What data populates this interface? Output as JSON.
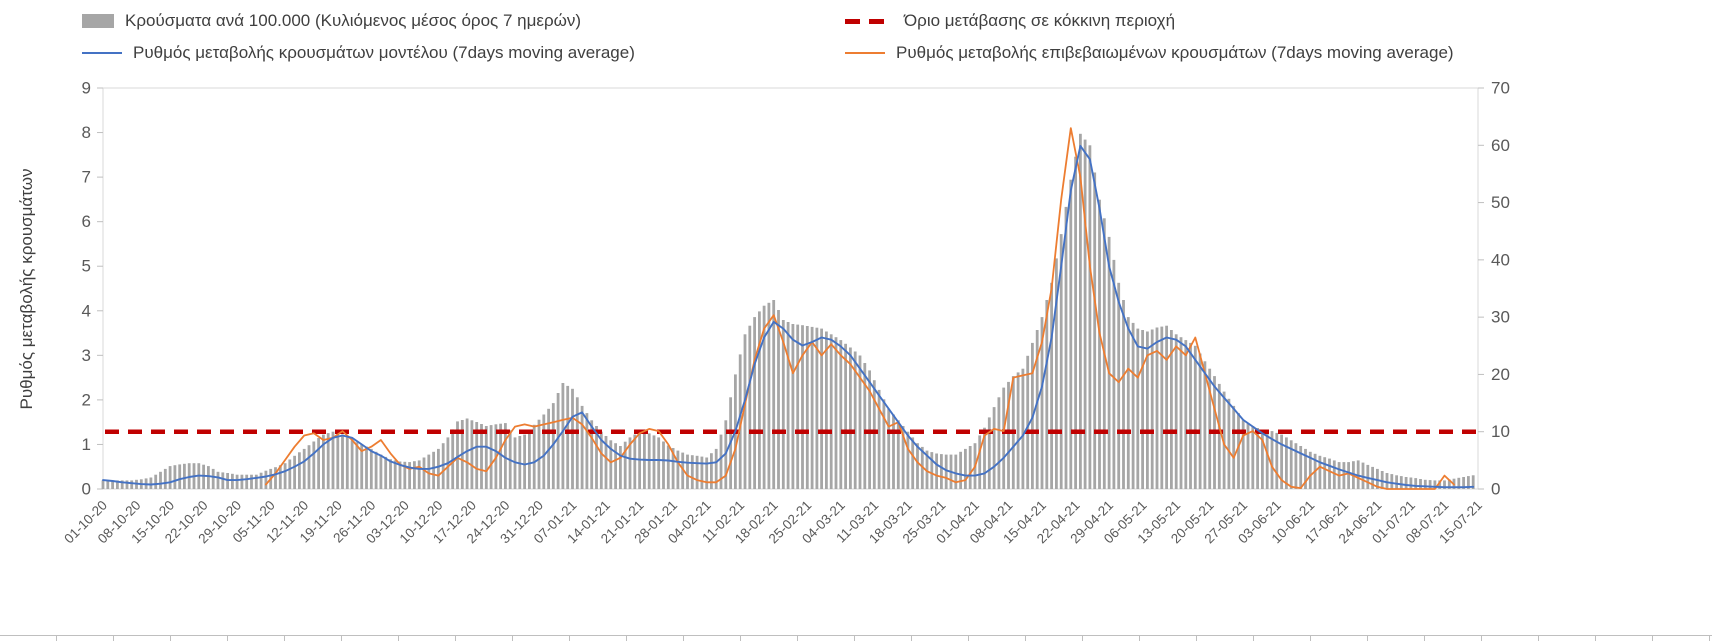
{
  "legend": {
    "cases_per_100k": "Κρούσματα ανά 100.000 (Κυλιόμενος μέσος όρος 7 ημερών)",
    "red_zone_threshold": "Όριο μετάβασης σε κόκκινη περιοχή",
    "model_rate": "Ρυθμός μεταβολής κρουσμάτων μοντέλου (7days moving average)",
    "confirmed_rate": "Ρυθμός μεταβολής επιβεβαιωμένων κρουσμάτων (7days moving average)"
  },
  "left_axis_title": "Ρυθμός μεταβολής κρουσμάτων",
  "colors": {
    "bars": "#a6a6a6",
    "model_line": "#4472c4",
    "confirmed_line": "#ed7d31",
    "threshold_line": "#c00000",
    "axis_text": "#595959",
    "legend_text": "#3f3f3f",
    "frame": "#d9d9d9",
    "tick": "#bfbfbf"
  },
  "chart_data": {
    "type": "bar",
    "subtype": "bar+line combo, dual y-axis",
    "title": "",
    "x_unit": "days since 01-10-20, daily bars, weekly tick labels",
    "sample_step_days": 2,
    "total_days": 287,
    "x_tick_interval_days": 7,
    "x_tick_labels": [
      "01-10-20",
      "08-10-20",
      "15-10-20",
      "22-10-20",
      "29-10-20",
      "05-11-20",
      "12-11-20",
      "19-11-20",
      "26-11-20",
      "03-12-20",
      "10-12-20",
      "17-12-20",
      "24-12-20",
      "31-12-20",
      "07-01-21",
      "14-01-21",
      "21-01-21",
      "28-01-21",
      "04-02-21",
      "11-02-21",
      "18-02-21",
      "25-02-21",
      "04-03-21",
      "11-03-21",
      "18-03-21",
      "25-03-21",
      "01-04-21",
      "08-04-21",
      "15-04-21",
      "22-04-21",
      "29-04-21",
      "06-05-21",
      "13-05-21",
      "20-05-21",
      "27-05-21",
      "03-06-21",
      "10-06-21",
      "17-06-21",
      "24-06-21",
      "01-07-21",
      "08-07-21",
      "15-07-21"
    ],
    "left_axis": {
      "label": "Ρυθμός μεταβολής κρουσμάτων",
      "min": 0,
      "max": 9,
      "ticks": [
        0,
        1,
        2,
        3,
        4,
        5,
        6,
        7,
        8,
        9
      ]
    },
    "right_axis": {
      "label": "",
      "min": 0,
      "max": 70,
      "ticks": [
        0,
        10,
        20,
        30,
        40,
        50,
        60,
        70
      ]
    },
    "threshold": {
      "value_right_axis": 10,
      "label": "Όριο μετάβασης σε κόκκινη περιοχή"
    },
    "legend_position": "top",
    "grid": "off",
    "series": {
      "bars_cases_per_100k_right_axis": [
        1.5,
        1.5,
        1.5,
        1.5,
        1.7,
        2,
        3,
        4,
        4.3,
        4.5,
        4.5,
        4,
        3,
        2.8,
        2.5,
        2.5,
        2.5,
        3.2,
        3.8,
        4.5,
        5.8,
        7,
        8.3,
        9.5,
        10,
        9.5,
        8.5,
        7.8,
        7,
        6,
        5.2,
        4.8,
        4.7,
        5,
        6,
        7,
        9,
        11.8,
        12.3,
        11.7,
        11,
        11.3,
        11.5,
        9,
        9.5,
        11.2,
        13,
        15,
        18.5,
        17.5,
        14.5,
        12,
        10,
        8.5,
        7.5,
        9,
        10,
        9.7,
        9,
        7.6,
        6.7,
        6,
        5.8,
        5.5,
        7,
        12,
        20,
        27,
        30,
        32,
        33,
        29.5,
        28.8,
        28.6,
        28.3,
        28,
        27,
        26,
        24.7,
        23.3,
        20.7,
        17.3,
        14,
        12,
        10,
        8,
        6.7,
        6.2,
        6,
        6,
        7,
        8,
        10.7,
        14.3,
        17.7,
        19.7,
        21,
        25.5,
        30,
        36,
        44.5,
        54,
        62,
        60,
        50.5,
        44,
        36,
        30,
        28,
        27.5,
        28.2,
        28.5,
        27,
        26,
        25,
        22.3,
        19.7,
        17,
        14.5,
        12,
        11,
        10.3,
        10.1,
        9.5,
        8.5,
        7.5,
        6.5,
        5.8,
        5.3,
        4.7,
        4.7,
        5,
        4.2,
        3.5,
        2.8,
        2.4,
        2.1,
        1.9,
        1.6,
        1.5,
        1.5,
        1.8,
        2.1,
        2.4
      ],
      "model_rate_left_axis": [
        0.2,
        0.18,
        0.15,
        0.13,
        0.11,
        0.1,
        0.12,
        0.15,
        0.22,
        0.27,
        0.3,
        0.29,
        0.26,
        0.2,
        0.2,
        0.22,
        0.25,
        0.28,
        0.33,
        0.4,
        0.5,
        0.62,
        0.8,
        1.0,
        1.15,
        1.2,
        1.15,
        1.0,
        0.85,
        0.75,
        0.62,
        0.54,
        0.48,
        0.45,
        0.45,
        0.5,
        0.58,
        0.72,
        0.85,
        0.95,
        0.95,
        0.85,
        0.7,
        0.6,
        0.55,
        0.6,
        0.75,
        1.0,
        1.3,
        1.62,
        1.72,
        1.4,
        1.1,
        0.9,
        0.75,
        0.68,
        0.66,
        0.65,
        0.65,
        0.64,
        0.61,
        0.59,
        0.58,
        0.57,
        0.6,
        0.8,
        1.3,
        2.0,
        2.8,
        3.4,
        3.75,
        3.6,
        3.35,
        3.22,
        3.3,
        3.4,
        3.35,
        3.2,
        3.0,
        2.7,
        2.4,
        2.1,
        1.8,
        1.5,
        1.2,
        0.95,
        0.75,
        0.55,
        0.42,
        0.35,
        0.3,
        0.3,
        0.35,
        0.5,
        0.7,
        0.95,
        1.2,
        1.6,
        2.3,
        3.4,
        5.0,
        6.7,
        7.7,
        7.4,
        6.3,
        5.0,
        4.2,
        3.6,
        3.2,
        3.15,
        3.3,
        3.4,
        3.35,
        3.2,
        2.9,
        2.6,
        2.3,
        2.05,
        1.8,
        1.55,
        1.4,
        1.25,
        1.12,
        1.0,
        0.9,
        0.8,
        0.7,
        0.6,
        0.52,
        0.44,
        0.37,
        0.3,
        0.25,
        0.2,
        0.15,
        0.12,
        0.09,
        0.07,
        0.06,
        0.05,
        0.04,
        0.04,
        0.04,
        0.05
      ],
      "confirmed_rate_left_axis": [
        null,
        null,
        null,
        null,
        null,
        null,
        null,
        null,
        null,
        null,
        null,
        null,
        null,
        null,
        null,
        null,
        null,
        0.1,
        0.35,
        0.65,
        0.95,
        1.2,
        1.25,
        1.1,
        1.15,
        1.3,
        1.1,
        0.85,
        0.95,
        1.1,
        0.8,
        0.55,
        0.45,
        0.5,
        0.35,
        0.3,
        0.5,
        0.7,
        0.6,
        0.45,
        0.4,
        0.7,
        1.1,
        1.4,
        1.45,
        1.4,
        1.45,
        1.5,
        1.55,
        1.6,
        1.45,
        1.15,
        0.8,
        0.6,
        0.7,
        1.0,
        1.25,
        1.35,
        1.3,
        1.0,
        0.6,
        0.3,
        0.2,
        0.15,
        0.15,
        0.3,
        0.9,
        1.9,
        2.9,
        3.6,
        3.9,
        3.3,
        2.6,
        3.0,
        3.3,
        3.0,
        3.25,
        3.0,
        2.8,
        2.5,
        2.2,
        1.8,
        1.4,
        1.5,
        0.9,
        0.6,
        0.4,
        0.3,
        0.25,
        0.15,
        0.2,
        0.5,
        1.2,
        1.35,
        1.3,
        2.5,
        2.55,
        2.6,
        3.3,
        4.5,
        6.5,
        8.1,
        7.0,
        5.0,
        3.5,
        2.6,
        2.4,
        2.7,
        2.5,
        3.0,
        3.1,
        2.9,
        3.2,
        3.0,
        3.4,
        2.6,
        1.8,
        1.0,
        0.7,
        1.2,
        1.3,
        1.1,
        0.5,
        0.2,
        0.05,
        0.02,
        0.3,
        0.5,
        0.4,
        0.3,
        0.35,
        0.25,
        0.15,
        0.05,
        0,
        0,
        0,
        0,
        0,
        0,
        0.3,
        0.1,
        null,
        null
      ]
    }
  }
}
